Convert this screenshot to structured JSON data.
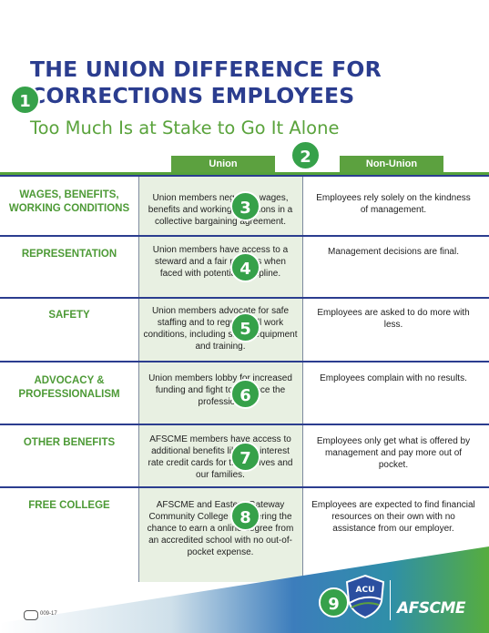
{
  "header": {
    "title_line1": "THE UNION DIFFERENCE FOR",
    "title_line2": "CORRECTIONS EMPLOYEES",
    "subtitle": "Too Much Is at Stake to Go It Alone"
  },
  "columns": {
    "union": "Union",
    "non_union": "Non-Union"
  },
  "rows": [
    {
      "category": "WAGES, BENEFITS, WORKING CONDITIONS",
      "union": "Union members negotiate wages, benefits and working conditions in a collective bargaining agreement.",
      "non_union": "Employees rely solely on the kindness of management."
    },
    {
      "category": "REPRESENTATION",
      "union": "Union members have access to a steward and a fair process when faced with potential discipline.",
      "non_union": "Management decisions are final."
    },
    {
      "category": "SAFETY",
      "union": "Union members advocate for safe staffing and to regulate all work conditions, including safety equipment and training.",
      "non_union": "Employees are asked to do more with less."
    },
    {
      "category": "ADVOCACY & PROFESSIONALISM",
      "union": "Union members lobby for increased funding and fight to advance the profession.",
      "non_union": "Employees complain with no results."
    },
    {
      "category": "OTHER BENEFITS",
      "union": "AFSCME members have access to additional benefits like low interest rate credit cards for themselves and our families.",
      "non_union": "Employees only get what is offered by management and pay more out of pocket."
    },
    {
      "category": "FREE COLLEGE",
      "union": "AFSCME and Eastern Gateway Community College are offering the chance to earn a online degree from an accredited school with no out-of-pocket expense.",
      "non_union": "Employees are expected to find financial resources on their own with no assistance from our employer."
    }
  ],
  "markers": [
    "1",
    "2",
    "3",
    "4",
    "5",
    "6",
    "7",
    "8",
    "9"
  ],
  "footer": {
    "code": "009-17",
    "acu_label": "ACU",
    "afscme_label": "AFSCME"
  },
  "colors": {
    "navy": "#2b3d8f",
    "green": "#5ca13f",
    "marker_green": "#36a14a",
    "union_shade": "#e8f0e2"
  }
}
